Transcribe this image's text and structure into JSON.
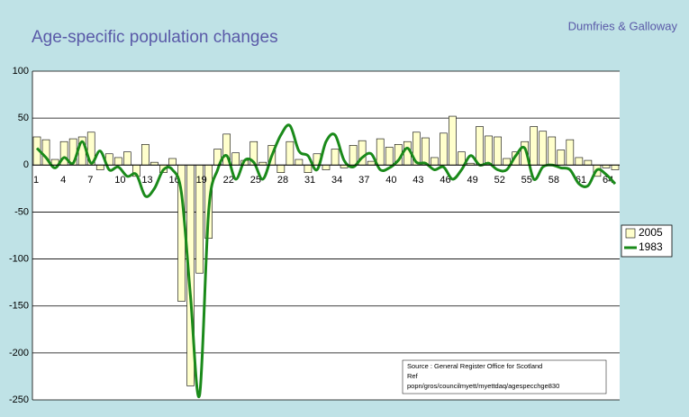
{
  "chart_data": {
    "type": "bar",
    "title": "Age-specific population changes",
    "subtitle": "Dumfries & Galloway",
    "categories": [
      "1",
      null,
      null,
      "4",
      null,
      null,
      "7",
      null,
      null,
      "10",
      null,
      null,
      "13",
      null,
      null,
      "16",
      null,
      null,
      "19",
      null,
      null,
      "22",
      null,
      null,
      "25",
      null,
      null,
      "28",
      null,
      null,
      "31",
      null,
      null,
      "34",
      null,
      null,
      "37",
      null,
      null,
      "40",
      null,
      null,
      "43",
      null,
      null,
      "46",
      null,
      null,
      "49",
      null,
      null,
      "52",
      null,
      null,
      "55",
      null,
      null,
      "58",
      null,
      null,
      "61",
      null,
      null,
      "64",
      null
    ],
    "series": [
      {
        "name": "2005",
        "type": "bar",
        "color": "#ffffcc",
        "values": [
          30,
          27,
          6,
          25,
          28,
          30,
          35,
          -5,
          12,
          8,
          14,
          -12,
          22,
          3,
          -8,
          7,
          -145,
          -235,
          -115,
          -78,
          17,
          33,
          13,
          5,
          25,
          3,
          21,
          -8,
          25,
          6,
          -8,
          12,
          -5,
          17,
          -3,
          21,
          26,
          4,
          28,
          19,
          22,
          25,
          35,
          29,
          8,
          34,
          52,
          14,
          2,
          41,
          31,
          30,
          7,
          14,
          25,
          41,
          36,
          30,
          16,
          27,
          8,
          5,
          -12,
          -3,
          -5
        ]
      },
      {
        "name": "1983",
        "type": "line",
        "color": "#1a8a1a",
        "values": [
          18,
          8,
          -3,
          8,
          2,
          25,
          2,
          15,
          -5,
          -2,
          -12,
          -10,
          -33,
          -25,
          -5,
          -5,
          -30,
          -140,
          -245,
          -50,
          -5,
          10,
          -15,
          5,
          3,
          -15,
          10,
          32,
          42,
          15,
          10,
          -5,
          25,
          32,
          5,
          -2,
          8,
          12,
          -5,
          -3,
          5,
          18,
          3,
          2,
          -5,
          -2,
          -15,
          -5,
          10,
          0,
          2,
          -5,
          -5,
          10,
          18,
          -15,
          -2,
          0,
          -3,
          -5,
          -20,
          -22,
          -5,
          -10,
          -20
        ]
      }
    ],
    "ylim": [
      -250,
      100
    ],
    "yticks": [
      -250,
      -200,
      -150,
      -100,
      -50,
      0,
      50,
      100
    ],
    "grid": true,
    "legend": "right",
    "annotations": [
      "Source :   General Register Office for Scotland",
      "Ref",
      "popn/gros/councilmyett/myettdaq/agespecchge830"
    ]
  }
}
